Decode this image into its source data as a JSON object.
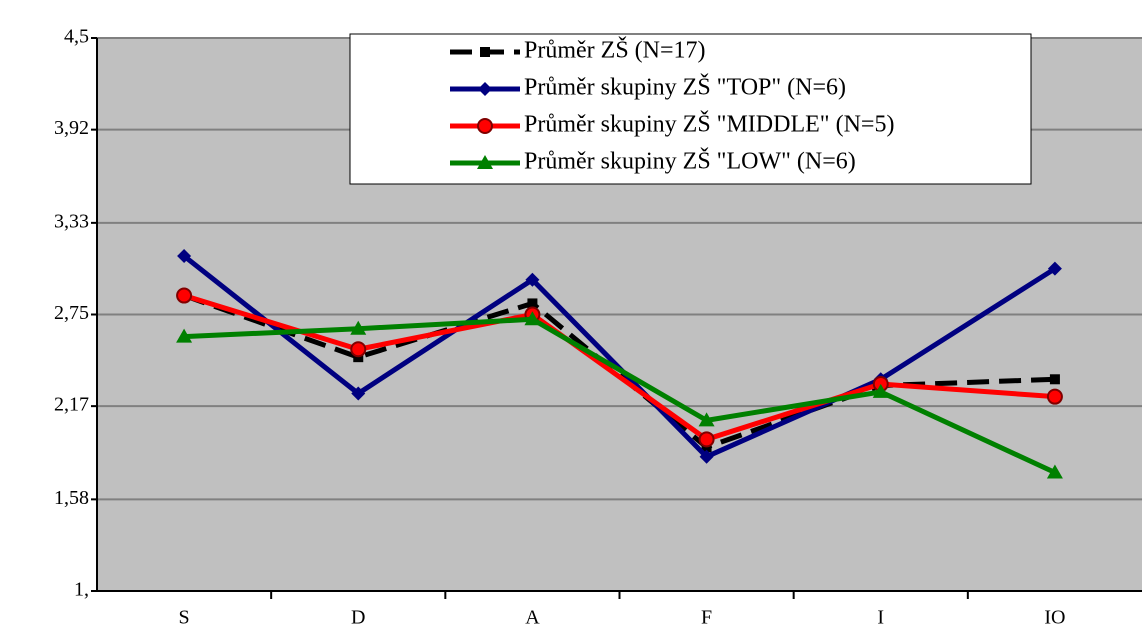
{
  "chart_data": {
    "type": "line",
    "categories": [
      "S",
      "D",
      "A",
      "F",
      "I",
      "IO"
    ],
    "series": [
      {
        "name": "Průměr ZŠ (N=17)",
        "color": "#000000",
        "marker": "square",
        "dashed": true,
        "values": [
          2.87,
          2.48,
          2.82,
          1.91,
          2.3,
          2.34
        ]
      },
      {
        "name": "Průměr skupiny ZŠ \"TOP\" (N=6)",
        "color": "#000080",
        "marker": "diamond",
        "values": [
          3.12,
          2.25,
          2.97,
          1.85,
          2.34,
          3.04
        ]
      },
      {
        "name": "Průměr skupiny ZŠ \"MIDDLE\" (N=5)",
        "color": "#ff0000",
        "marker": "circle",
        "values": [
          2.87,
          2.53,
          2.75,
          1.96,
          2.31,
          2.23
        ]
      },
      {
        "name": "Průměr skupiny ZŠ \"LOW\" (N=6)",
        "color": "#008000",
        "marker": "triangle",
        "values": [
          2.61,
          2.66,
          2.72,
          2.08,
          2.26,
          1.75
        ]
      }
    ],
    "ylim": [
      1,
      4.5
    ],
    "yticks": [
      {
        "value": 1,
        "label": "1,"
      },
      {
        "value": 1.58,
        "label": "1,58"
      },
      {
        "value": 2.17,
        "label": "2,17"
      },
      {
        "value": 2.75,
        "label": "2,75"
      },
      {
        "value": 3.33,
        "label": "3,33"
      },
      {
        "value": 3.92,
        "label": "3,92"
      },
      {
        "value": 4.5,
        "label": "4,5"
      }
    ],
    "grid": true,
    "legend": "top-right"
  }
}
